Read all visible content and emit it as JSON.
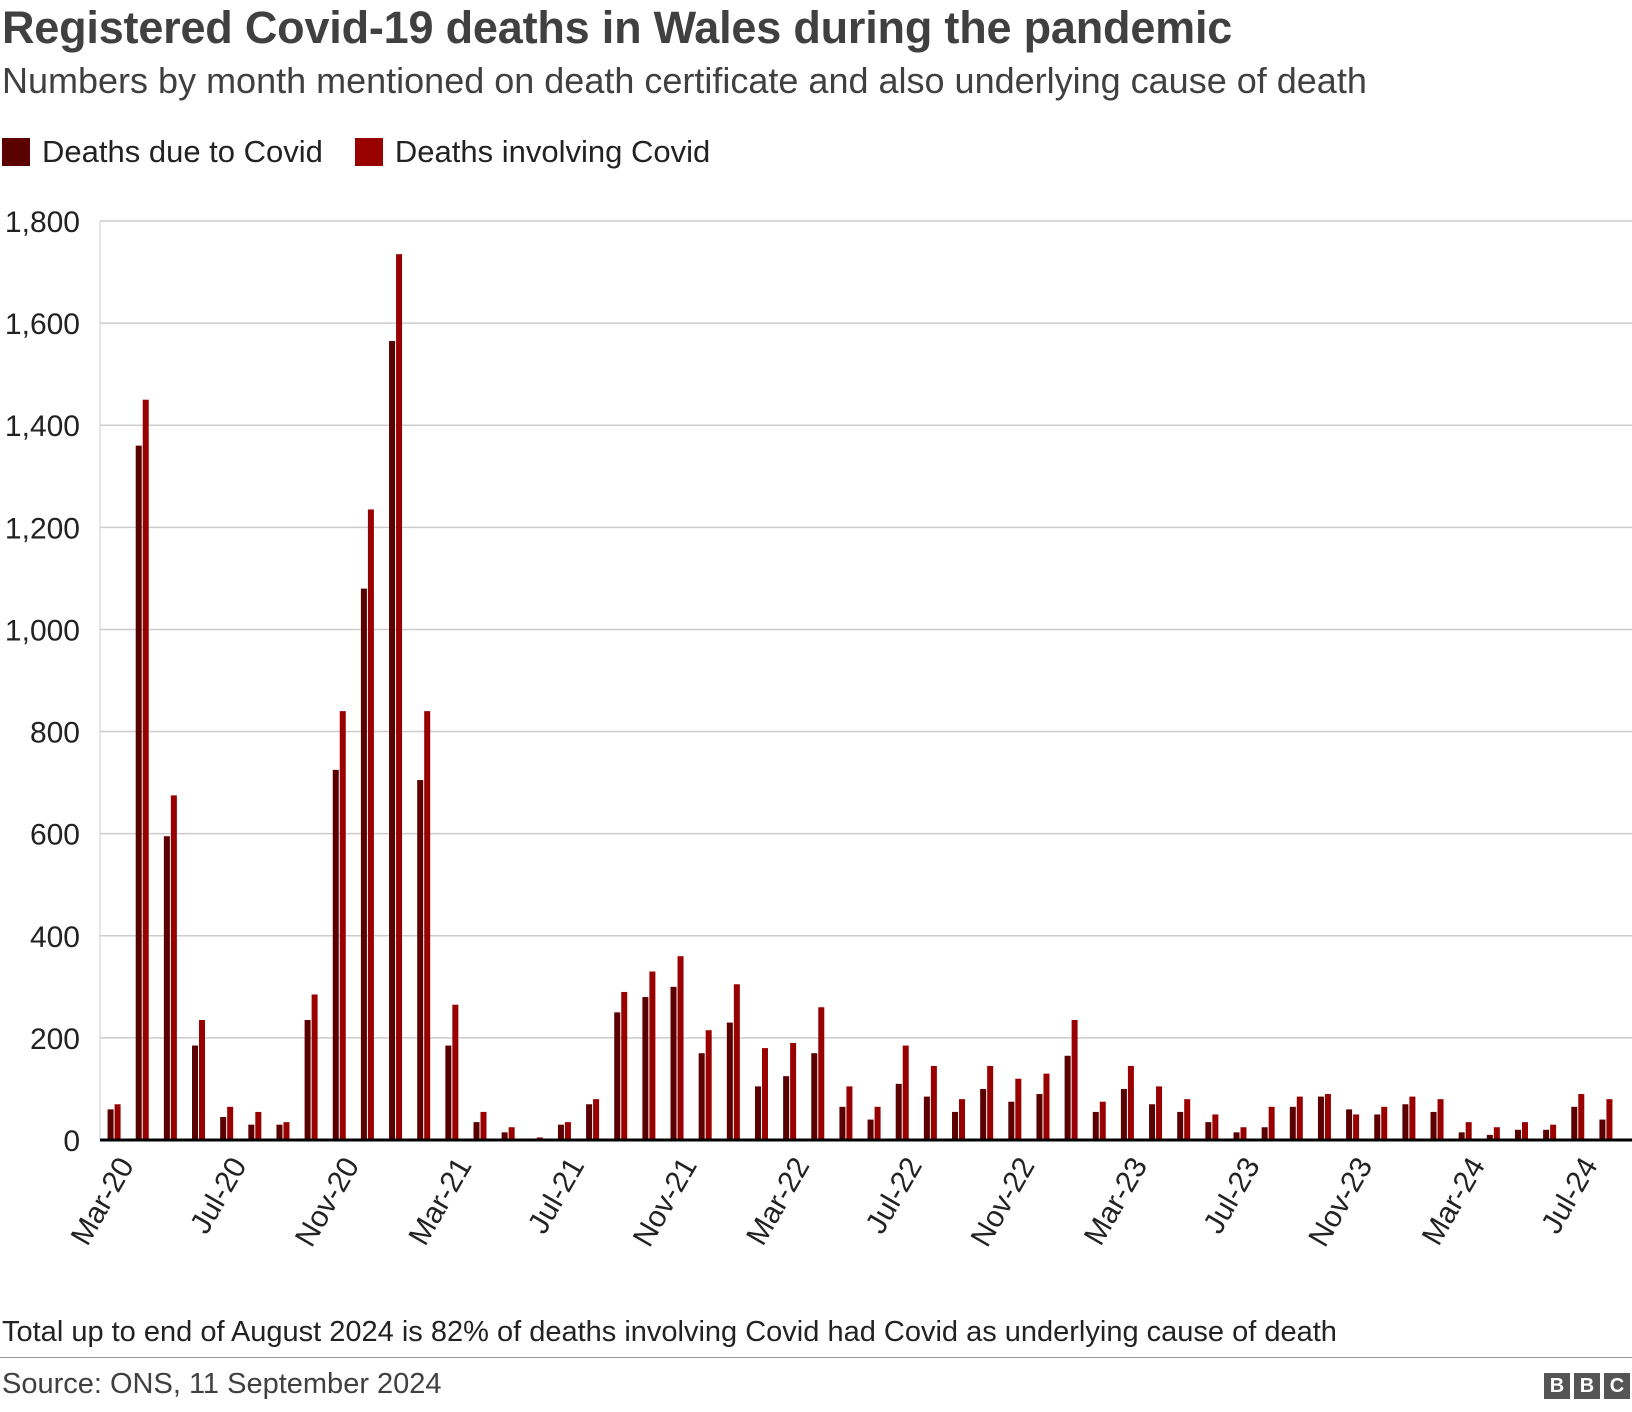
{
  "title": "Registered Covid-19 deaths in Wales during the pandemic",
  "subtitle": "Numbers by month mentioned on death certificate and also underlying cause of death",
  "footnote": "Total up to end of August 2024 is 82% of deaths involving Covid had Covid as underlying cause of death",
  "source": "Source: ONS, 11 September 2024",
  "logo": [
    "B",
    "B",
    "C"
  ],
  "colors": {
    "due": "#5a0000",
    "involving": "#990000",
    "grid": "#cccccc",
    "axis": "#000000"
  },
  "chart_data": {
    "type": "bar",
    "title": "Registered Covid-19 deaths in Wales during the pandemic",
    "xlabel": "",
    "ylabel": "",
    "ylim": [
      0,
      1800
    ],
    "yticks": [
      0,
      200,
      400,
      600,
      800,
      1000,
      1200,
      1400,
      1600,
      1800
    ],
    "ytick_labels": [
      "0",
      "200",
      "400",
      "600",
      "800",
      "1,000",
      "1,200",
      "1,400",
      "1,600",
      "1,800"
    ],
    "grid": true,
    "legend_position": "top-left",
    "categories": [
      "Mar-20",
      "Apr-20",
      "May-20",
      "Jun-20",
      "Jul-20",
      "Aug-20",
      "Sep-20",
      "Oct-20",
      "Nov-20",
      "Dec-20",
      "Jan-21",
      "Feb-21",
      "Mar-21",
      "Apr-21",
      "May-21",
      "Jun-21",
      "Jul-21",
      "Aug-21",
      "Sep-21",
      "Oct-21",
      "Nov-21",
      "Dec-21",
      "Jan-22",
      "Feb-22",
      "Mar-22",
      "Apr-22",
      "May-22",
      "Jun-22",
      "Jul-22",
      "Aug-22",
      "Sep-22",
      "Oct-22",
      "Nov-22",
      "Dec-22",
      "Jan-23",
      "Feb-23",
      "Mar-23",
      "Apr-23",
      "May-23",
      "Jun-23",
      "Jul-23",
      "Aug-23",
      "Sep-23",
      "Oct-23",
      "Nov-23",
      "Dec-23",
      "Jan-24",
      "Feb-24",
      "Mar-24",
      "Apr-24",
      "May-24",
      "Jun-24",
      "Jul-24",
      "Aug-24"
    ],
    "xtick_labels": [
      "Mar-20",
      "Jul-20",
      "Nov-20",
      "Mar-21",
      "Jul-21",
      "Nov-21",
      "Mar-22",
      "Jul-22",
      "Nov-22",
      "Mar-23",
      "Jul-23",
      "Nov-23",
      "Mar-24",
      "Jul-24"
    ],
    "series": [
      {
        "name": "Deaths due to Covid",
        "values": [
          60,
          1360,
          595,
          185,
          45,
          30,
          30,
          235,
          725,
          1080,
          1565,
          705,
          185,
          35,
          15,
          2,
          30,
          70,
          250,
          280,
          300,
          170,
          230,
          105,
          125,
          170,
          65,
          40,
          110,
          85,
          55,
          100,
          75,
          90,
          165,
          55,
          100,
          70,
          55,
          35,
          15,
          25,
          65,
          85,
          60,
          50,
          70,
          55,
          15,
          10,
          20,
          20,
          65,
          40
        ]
      },
      {
        "name": "Deaths involving Covid",
        "values": [
          70,
          1450,
          675,
          235,
          65,
          55,
          35,
          285,
          840,
          1235,
          1735,
          840,
          265,
          55,
          25,
          5,
          35,
          80,
          290,
          330,
          360,
          215,
          305,
          180,
          190,
          260,
          105,
          65,
          185,
          145,
          80,
          145,
          120,
          130,
          235,
          75,
          145,
          105,
          80,
          50,
          25,
          65,
          85,
          90,
          50,
          65,
          85,
          80,
          35,
          25,
          35,
          30,
          90,
          80
        ]
      }
    ]
  }
}
